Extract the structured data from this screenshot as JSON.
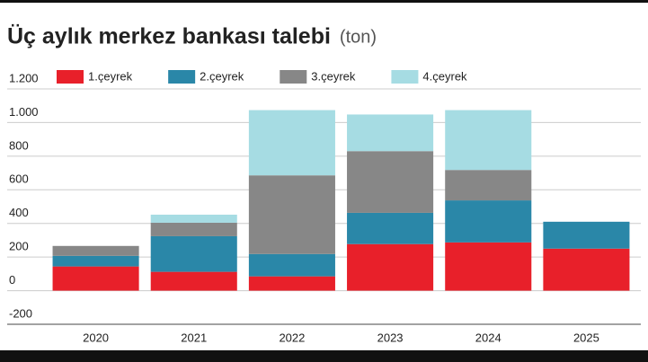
{
  "chart_data": {
    "type": "stacked_bar",
    "title": "Üç aylık merkez bankası talebi",
    "subtitle": "(ton)",
    "categories": [
      "2020",
      "2021",
      "2022",
      "2023",
      "2024",
      "2025"
    ],
    "series": [
      {
        "name": "1.çeyrek",
        "color": "#e8202a",
        "values": [
          144,
          112,
          85,
          277,
          287,
          250
        ]
      },
      {
        "name": "2.çeyrek",
        "color": "#2a87a8",
        "values": [
          63,
          212,
          133,
          186,
          250,
          160
        ]
      },
      {
        "name": "3.çeyrek",
        "color": "#878787",
        "values": [
          59,
          80,
          468,
          367,
          181,
          null
        ]
      },
      {
        "name": "4.çeyrek",
        "color": "#a6dce3",
        "values": [
          null,
          48,
          388,
          218,
          356,
          null
        ]
      }
    ],
    "ylim": [
      -200,
      1200
    ],
    "yticks": [
      {
        "value": 1200,
        "label": "1.200"
      },
      {
        "value": 1000,
        "label": "1.000"
      },
      800,
      600,
      400,
      200,
      0,
      -200
    ],
    "grid": true
  }
}
